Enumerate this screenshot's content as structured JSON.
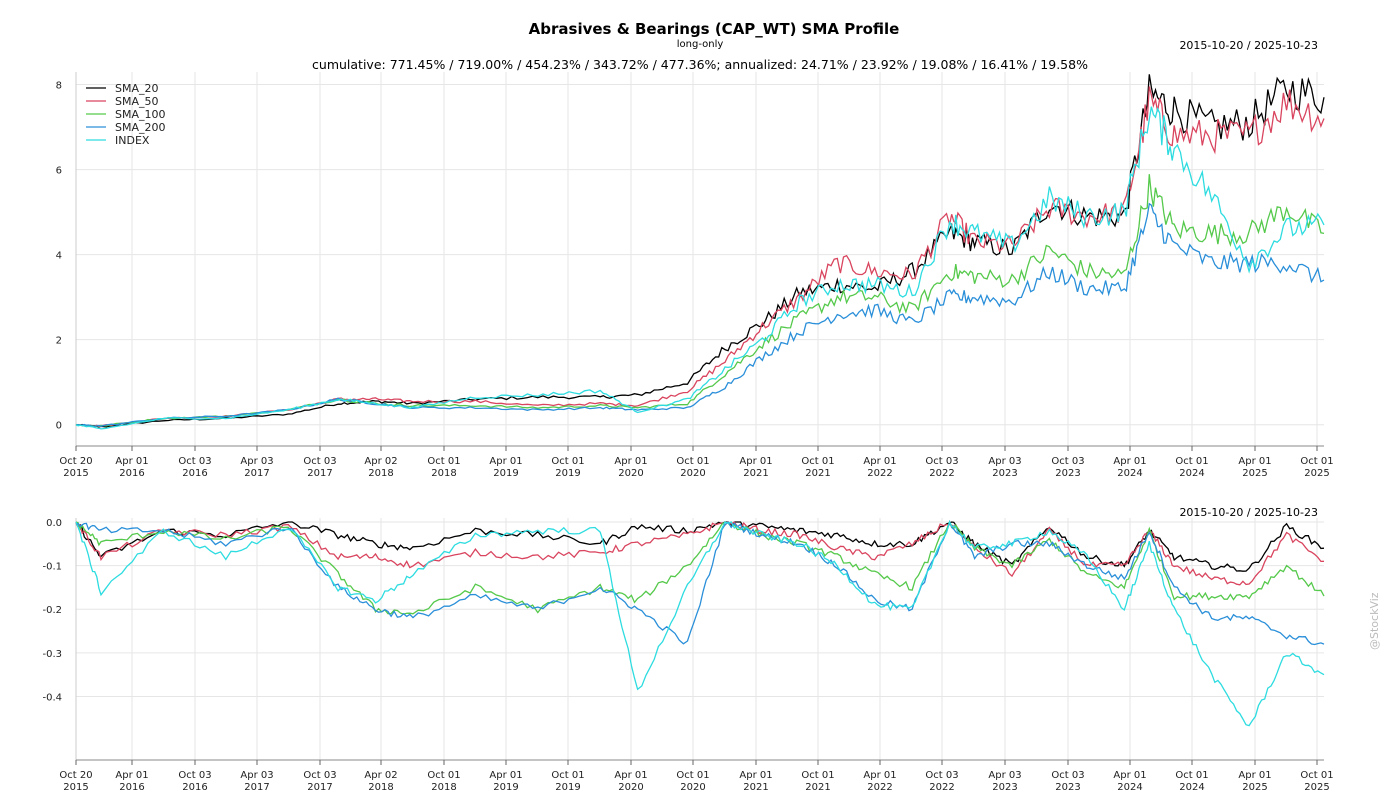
{
  "title": "Abrasives & Bearings (CAP_WT) SMA Profile",
  "subtitle": "long-only",
  "stats": "cumulative: 771.45% / 719.00% / 454.23% / 343.72% / 477.36%; annualized: 24.71% / 23.92% / 19.08% / 16.41% / 19.58%",
  "date_range": "2015-10-20 / 2025-10-23",
  "watermark": "@StockViz",
  "colors": {
    "SMA_20": "#000000",
    "SMA_50": "#d9455f",
    "SMA_100": "#55c94b",
    "SMA_200": "#2a8fd9",
    "INDEX": "#2ddce0"
  },
  "chart_data": [
    {
      "type": "line",
      "title": "Abrasives & Bearings (CAP_WT) SMA Profile",
      "subtitle": "long-only",
      "ylim": [
        -0.1,
        8.2
      ],
      "yticks": [
        0,
        2,
        4,
        6,
        8
      ],
      "grid": true,
      "legend": "top-left",
      "x_ticks": [
        "Oct 20\n2015",
        "Apr 01\n2016",
        "Oct 03\n2016",
        "Apr 03\n2017",
        "Oct 03\n2017",
        "Apr 02\n2018",
        "Oct 01\n2018",
        "Apr 01\n2019",
        "Oct 01\n2019",
        "Apr 01\n2020",
        "Oct 01\n2020",
        "Apr 01\n2021",
        "Oct 01\n2021",
        "Apr 01\n2022",
        "Oct 03\n2022",
        "Apr 03\n2023",
        "Oct 03\n2023",
        "Apr 01\n2024",
        "Oct 01\n2024",
        "Apr 01\n2025",
        "Oct 01\n2025"
      ],
      "x": [
        2015.8,
        2016.0,
        2016.5,
        2017.0,
        2017.5,
        2017.9,
        2018.2,
        2018.5,
        2019.0,
        2019.5,
        2020.0,
        2020.3,
        2020.7,
        2021.0,
        2021.3,
        2021.6,
        2021.9,
        2022.2,
        2022.5,
        2022.8,
        2023.0,
        2023.3,
        2023.6,
        2023.9,
        2024.2,
        2024.4,
        2024.6,
        2024.9,
        2025.2,
        2025.5,
        2025.8
      ],
      "series": [
        {
          "name": "SMA_20",
          "values": [
            0,
            -0.05,
            0.1,
            0.15,
            0.25,
            0.5,
            0.55,
            0.5,
            0.6,
            0.65,
            0.65,
            0.7,
            1.0,
            1.8,
            2.4,
            3.1,
            3.3,
            3.2,
            3.6,
            4.5,
            4.3,
            4.1,
            5.2,
            4.9,
            4.9,
            7.8,
            7.4,
            7.0,
            7.1,
            7.9,
            7.7
          ]
        },
        {
          "name": "SMA_50",
          "values": [
            0,
            -0.03,
            0.15,
            0.2,
            0.35,
            0.6,
            0.6,
            0.55,
            0.55,
            0.45,
            0.5,
            0.45,
            0.8,
            1.5,
            2.3,
            3.0,
            3.8,
            3.6,
            3.5,
            4.9,
            4.3,
            4.2,
            5.1,
            4.9,
            5.0,
            7.6,
            6.8,
            6.8,
            6.8,
            7.6,
            7.2
          ]
        },
        {
          "name": "SMA_100",
          "values": [
            0,
            -0.03,
            0.15,
            0.2,
            0.35,
            0.6,
            0.5,
            0.45,
            0.45,
            0.4,
            0.45,
            0.4,
            0.5,
            1.2,
            1.9,
            2.5,
            3.0,
            3.0,
            2.7,
            3.6,
            3.5,
            3.4,
            4.1,
            3.6,
            3.5,
            5.6,
            4.6,
            4.5,
            4.5,
            5.1,
            4.5
          ]
        },
        {
          "name": "SMA_200",
          "values": [
            0,
            -0.03,
            0.15,
            0.2,
            0.35,
            0.6,
            0.5,
            0.4,
            0.4,
            0.35,
            0.4,
            0.35,
            0.4,
            0.9,
            1.6,
            2.2,
            2.6,
            2.7,
            2.4,
            3.0,
            3.0,
            2.9,
            3.6,
            3.2,
            3.2,
            5.0,
            4.2,
            3.8,
            3.8,
            3.8,
            3.4
          ]
        },
        {
          "name": "INDEX",
          "values": [
            0,
            -0.1,
            0.15,
            0.15,
            0.35,
            0.6,
            0.5,
            0.4,
            0.65,
            0.7,
            0.8,
            0.3,
            0.6,
            1.3,
            2.0,
            2.9,
            3.3,
            3.3,
            3.1,
            4.8,
            4.5,
            4.2,
            5.3,
            4.9,
            5.0,
            7.4,
            6.5,
            5.4,
            3.8,
            4.6,
            4.7
          ]
        }
      ]
    },
    {
      "type": "line",
      "ylim": [
        -0.47,
        0.0
      ],
      "yticks": [
        0.0,
        -0.1,
        -0.2,
        -0.3,
        -0.4
      ],
      "grid": true,
      "x": [
        2015.8,
        2016.0,
        2016.5,
        2017.0,
        2017.5,
        2017.9,
        2018.2,
        2018.5,
        2019.0,
        2019.5,
        2020.0,
        2020.3,
        2020.7,
        2021.0,
        2021.3,
        2021.6,
        2021.9,
        2022.2,
        2022.5,
        2022.8,
        2023.0,
        2023.3,
        2023.6,
        2023.9,
        2024.2,
        2024.4,
        2024.6,
        2024.9,
        2025.2,
        2025.5,
        2025.8
      ],
      "series": [
        {
          "name": "SMA_20",
          "values": [
            0,
            -0.08,
            -0.02,
            -0.03,
            0,
            -0.03,
            -0.05,
            -0.06,
            -0.02,
            -0.03,
            -0.05,
            -0.01,
            -0.02,
            0,
            -0.01,
            -0.02,
            -0.03,
            -0.05,
            -0.05,
            0,
            -0.05,
            -0.1,
            -0.01,
            -0.08,
            -0.1,
            -0.02,
            -0.08,
            -0.1,
            -0.11,
            -0.01,
            -0.06
          ]
        },
        {
          "name": "SMA_50",
          "values": [
            0,
            -0.08,
            -0.02,
            -0.03,
            -0.01,
            -0.08,
            -0.08,
            -0.1,
            -0.07,
            -0.08,
            -0.07,
            -0.05,
            -0.03,
            0,
            -0.02,
            -0.03,
            -0.06,
            -0.08,
            -0.05,
            0,
            -0.06,
            -0.12,
            -0.02,
            -0.1,
            -0.1,
            -0.02,
            -0.1,
            -0.13,
            -0.14,
            -0.03,
            -0.09
          ]
        },
        {
          "name": "SMA_100",
          "values": [
            0,
            -0.05,
            -0.02,
            -0.04,
            -0.01,
            -0.12,
            -0.2,
            -0.21,
            -0.15,
            -0.2,
            -0.15,
            -0.18,
            -0.1,
            0,
            -0.03,
            -0.05,
            -0.08,
            -0.12,
            -0.15,
            0,
            -0.06,
            -0.1,
            -0.04,
            -0.12,
            -0.15,
            -0.02,
            -0.17,
            -0.17,
            -0.17,
            -0.1,
            -0.17
          ]
        },
        {
          "name": "SMA_200",
          "values": [
            0,
            -0.02,
            -0.02,
            -0.05,
            -0.01,
            -0.15,
            -0.2,
            -0.22,
            -0.17,
            -0.2,
            -0.15,
            -0.2,
            -0.28,
            0,
            -0.03,
            -0.05,
            -0.1,
            -0.18,
            -0.2,
            0,
            -0.08,
            -0.05,
            -0.05,
            -0.1,
            -0.13,
            -0.02,
            -0.15,
            -0.22,
            -0.22,
            -0.26,
            -0.28
          ]
        },
        {
          "name": "INDEX",
          "values": [
            0,
            -0.16,
            -0.02,
            -0.08,
            -0.01,
            -0.15,
            -0.18,
            -0.12,
            -0.03,
            -0.02,
            -0.02,
            -0.39,
            -0.15,
            0,
            -0.03,
            -0.05,
            -0.1,
            -0.19,
            -0.2,
            0,
            -0.06,
            -0.05,
            -0.02,
            -0.08,
            -0.2,
            -0.05,
            -0.2,
            -0.35,
            -0.47,
            -0.3,
            -0.35
          ]
        }
      ]
    }
  ]
}
